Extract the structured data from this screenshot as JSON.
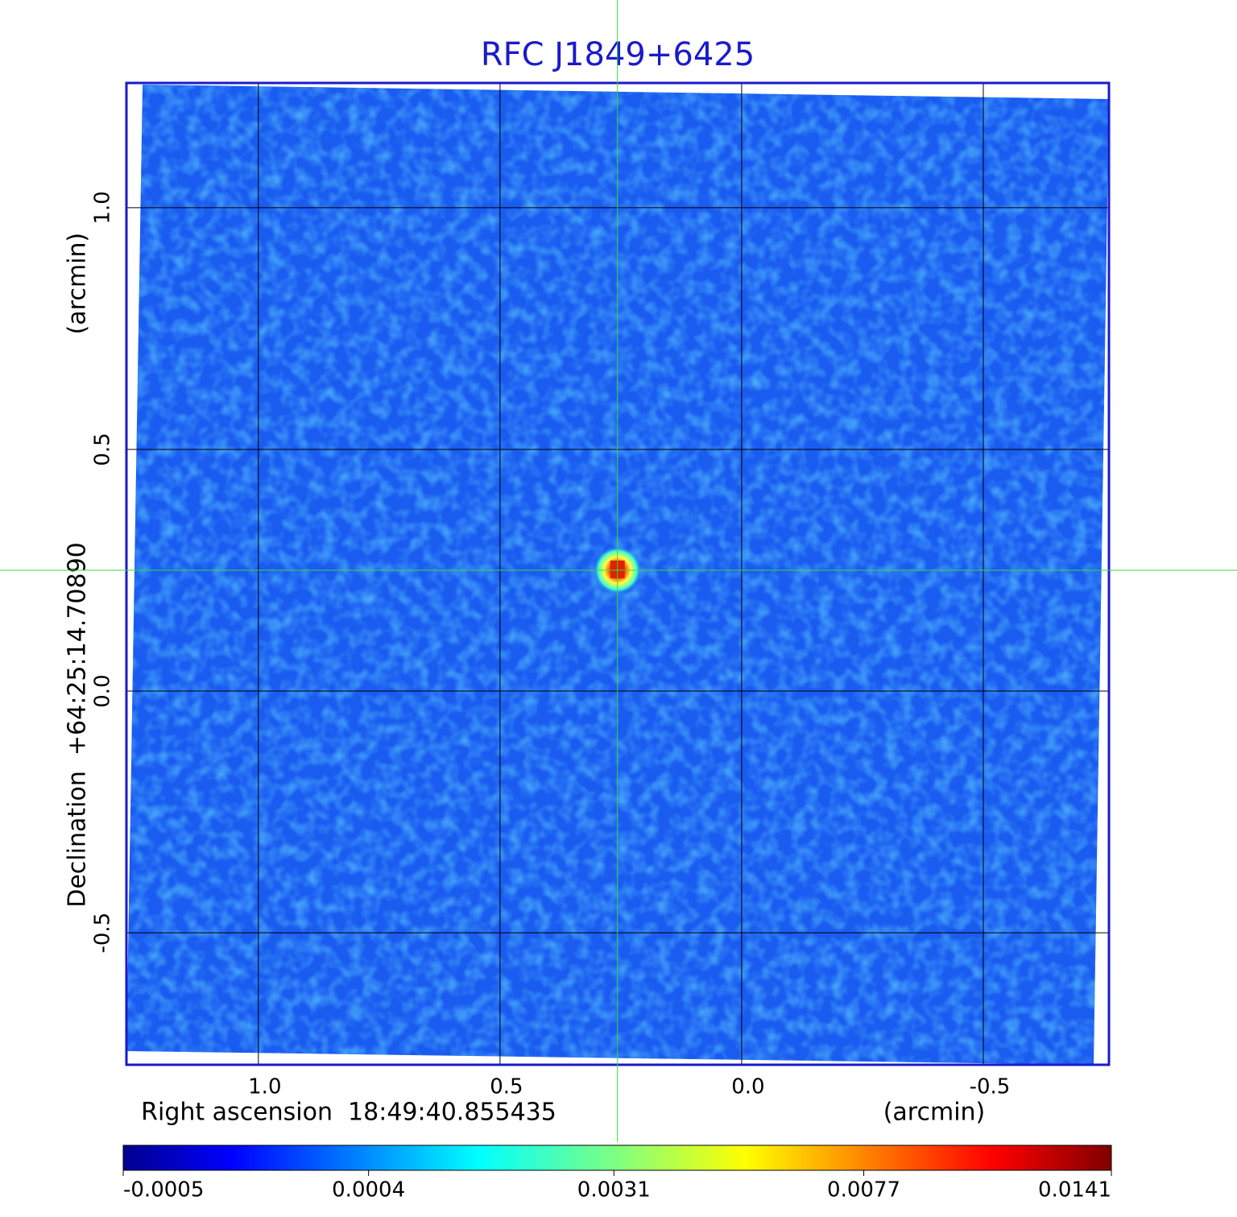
{
  "chart_data": {
    "type": "image",
    "title": "RFC J1849+6425",
    "xlabel": "Right ascension  18:49:40.855435",
    "xunit": "(arcmin)",
    "ylabel": "Declination  +64:25:14.70890",
    "yunit": "(arcmin)",
    "xlim": [
      1.273,
      -0.76
    ],
    "ylim": [
      -0.773,
      1.258
    ],
    "xticks": [
      {
        "value": 1,
        "label": "1.0"
      },
      0.5,
      {
        "value": 0,
        "label": "0.0"
      },
      -0.5
    ],
    "yticks": [
      {
        "value": 1,
        "label": "1.0"
      },
      0.5,
      {
        "value": 0,
        "label": "0.0"
      },
      -0.5
    ],
    "grid": true,
    "crosshair": {
      "x": 0.257,
      "y": 0.25,
      "color": "#33dd33"
    },
    "colorbar": {
      "lim": [
        -0.0005,
        0.0141
      ],
      "scale": "sqrt",
      "colormap": "jet",
      "ticks": [
        -0.0005,
        0.0004,
        0.0031,
        0.0077,
        0.0141
      ]
    }
  }
}
